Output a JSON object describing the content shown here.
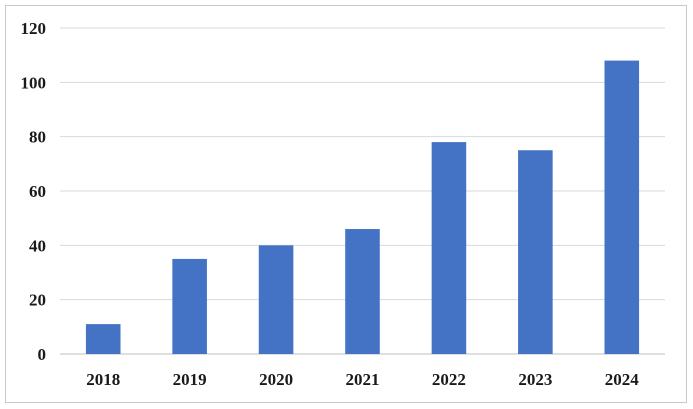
{
  "chart_data": {
    "type": "bar",
    "title": "",
    "xlabel": "",
    "ylabel": "",
    "categories": [
      "2018",
      "2019",
      "2020",
      "2021",
      "2022",
      "2023",
      "2024"
    ],
    "values": [
      11,
      35,
      40,
      46,
      78,
      75,
      108
    ],
    "ylim": [
      0,
      120
    ],
    "yticks": [
      0,
      20,
      40,
      60,
      80,
      100,
      120
    ],
    "ytick_labels": [
      "0",
      "20",
      "40",
      "60",
      "80",
      "100",
      "120"
    ],
    "grid": true,
    "legend": "none",
    "bar_color": "#4472C4"
  }
}
